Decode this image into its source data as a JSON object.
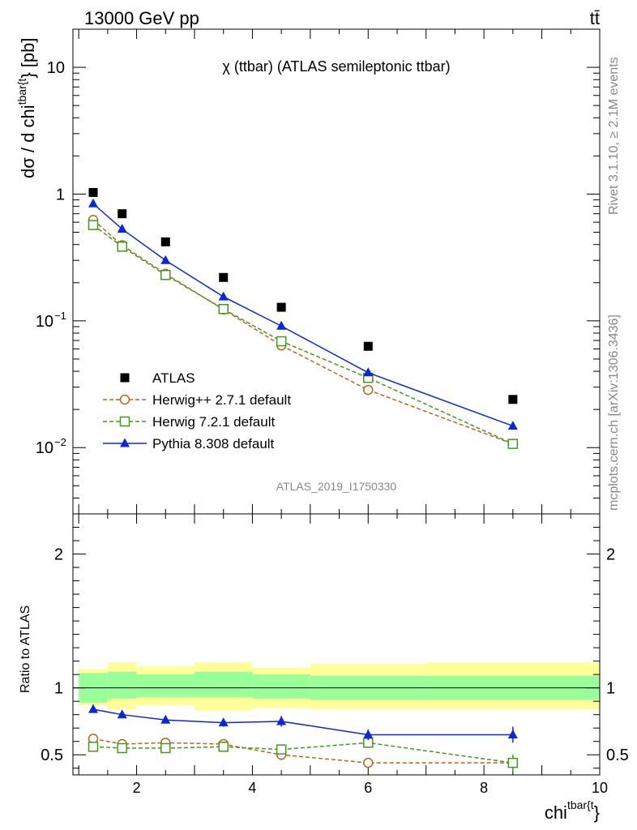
{
  "header": {
    "left": "13000 GeV pp",
    "right": "tt̄"
  },
  "side_text": {
    "version": "Rivet 3.1.10, ≥ 2.1M events",
    "url": "mcplots.cern.ch [arXiv:1306.3436]"
  },
  "chart_data": {
    "type": "line",
    "title": "χ (ttbar) (ATLAS semileptonic ttbar)",
    "analysis_id": "ATLAS_2019_I1750330",
    "xlabel_main": "chi",
    "xlabel_sup": "tbar{t",
    "xlabel_sub": "}",
    "ylabel_main": "dσ / d chi",
    "ylabel_sup": "tbar{t",
    "ylabel_sub": "}",
    "ylabel_unit": " [pb]",
    "ratio_ylabel": "Ratio to ATLAS",
    "xlim": [
      0.9,
      10
    ],
    "ylim_main": [
      0.003,
      20
    ],
    "ylim_ratio": [
      0.35,
      2.3
    ],
    "yscale_main": "log",
    "x_ticks": [
      "2",
      "4",
      "6",
      "8",
      "10"
    ],
    "y_ticks_main": [
      {
        "value": 10,
        "label": "10",
        "sup": ""
      },
      {
        "value": 1,
        "label": "1",
        "sup": ""
      },
      {
        "value": 0.1,
        "label": "10",
        "sup": "−1"
      },
      {
        "value": 0.01,
        "label": "10",
        "sup": "−2"
      }
    ],
    "y_ticks_ratio": [
      {
        "value": 0.5,
        "label": "0.5"
      },
      {
        "value": 1,
        "label": "1"
      },
      {
        "value": 2,
        "label": "2"
      }
    ],
    "legend_position": "lower-left",
    "bins": [
      [
        1,
        1.5
      ],
      [
        1.5,
        2
      ],
      [
        2,
        3
      ],
      [
        3,
        4
      ],
      [
        4,
        5
      ],
      [
        5,
        7
      ],
      [
        7,
        10
      ]
    ],
    "x": [
      1.25,
      1.75,
      2.5,
      3.5,
      4.5,
      6.0,
      8.5
    ],
    "data": {
      "name": "ATLAS",
      "values": [
        1.03,
        0.7,
        0.42,
        0.22,
        0.128,
        0.063,
        0.024
      ]
    },
    "band_inner": [
      [
        0.89,
        1.11
      ],
      [
        0.92,
        1.12
      ],
      [
        0.93,
        1.1
      ],
      [
        0.93,
        1.12
      ],
      [
        0.92,
        1.1
      ],
      [
        0.91,
        1.09
      ],
      [
        0.91,
        1.09
      ]
    ],
    "band_outer": [
      [
        0.87,
        1.14
      ],
      [
        0.84,
        1.19
      ],
      [
        0.87,
        1.16
      ],
      [
        0.83,
        1.19
      ],
      [
        0.85,
        1.15
      ],
      [
        0.84,
        1.18
      ],
      [
        0.84,
        1.19
      ]
    ],
    "series": [
      {
        "name": "Herwig++ 2.7.1 default",
        "color": "#b5651d",
        "marker": "circle",
        "dash": true,
        "values": [
          0.625,
          0.395,
          0.235,
          0.123,
          0.064,
          0.0285,
          0.0107
        ],
        "ratio": [
          0.62,
          0.58,
          0.59,
          0.58,
          0.5,
          0.44,
          0.44
        ],
        "ratio_err": [
          0.01,
          0.01,
          0.01,
          0.02,
          0.03,
          0.03,
          0.04
        ]
      },
      {
        "name": "Herwig 7.2.1 default",
        "color": "#3f9a1a",
        "marker": "square",
        "dash": true,
        "values": [
          0.57,
          0.385,
          0.23,
          0.124,
          0.069,
          0.0355,
          0.0107
        ],
        "ratio": [
          0.56,
          0.55,
          0.55,
          0.56,
          0.54,
          0.59,
          0.44
        ],
        "ratio_err": [
          0.01,
          0.01,
          0.01,
          0.01,
          0.03,
          0.03,
          0.06
        ]
      },
      {
        "name": "Pythia 8.308 default",
        "color": "#0a28d8",
        "marker": "triangle",
        "dash": false,
        "values": [
          0.84,
          0.53,
          0.3,
          0.155,
          0.091,
          0.039,
          0.0148
        ],
        "ratio": [
          0.84,
          0.8,
          0.76,
          0.74,
          0.75,
          0.65,
          0.65
        ],
        "ratio_err": [
          0.01,
          0.015,
          0.02,
          0.03,
          0.04,
          0.04,
          0.06
        ]
      }
    ]
  }
}
